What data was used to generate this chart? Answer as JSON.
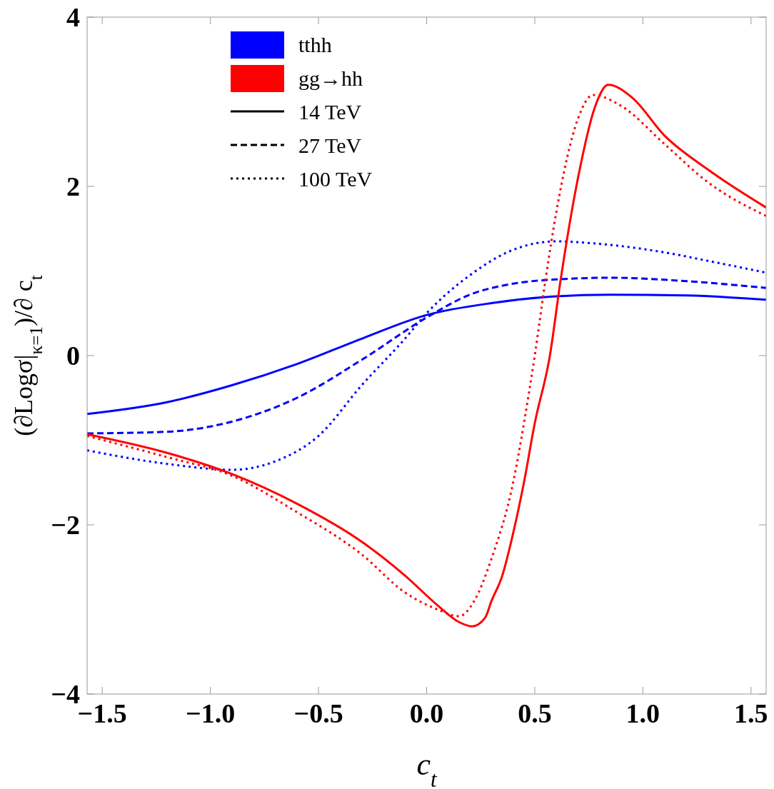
{
  "chart_data": {
    "type": "line",
    "xlabel": "c$_{t}$",
    "ylabel": "(∂Logσ|$_{κ=1}$)/∂ c$_{t}$",
    "xlim": [
      -1.57,
      1.57
    ],
    "ylim": [
      -4,
      4
    ],
    "xticks": [
      -1.5,
      {
        "value": -1,
        "label": "−1.0"
      },
      -0.5,
      {
        "value": 0,
        "label": "0.0"
      },
      0.5,
      {
        "value": 1,
        "label": "1.0"
      },
      1.5
    ],
    "yticks": [
      -4,
      -2,
      0,
      2,
      4
    ],
    "grid": false,
    "annotations": [
      "tthh",
      "gg→hh",
      "14 TeV",
      "27 TeV",
      "100 TeV"
    ],
    "series": [
      {
        "color": "#0000ff",
        "line_style": "solid",
        "x": [
          -1.57,
          -1.2,
          -0.9,
          -0.6,
          -0.3,
          0,
          0.3,
          0.6,
          0.85,
          1.2,
          1.57
        ],
        "values": [
          -0.69,
          -0.55,
          -0.35,
          -0.1,
          0.2,
          0.48,
          0.62,
          0.7,
          0.72,
          0.71,
          0.66
        ]
      },
      {
        "color": "#0000ff",
        "line_style": "dashed",
        "x": [
          -1.57,
          -1.2,
          -0.9,
          -0.6,
          -0.3,
          0,
          0.2,
          0.4,
          0.6,
          0.85,
          1.2,
          1.57
        ],
        "values": [
          -0.92,
          -0.9,
          -0.78,
          -0.5,
          -0.05,
          0.45,
          0.72,
          0.85,
          0.9,
          0.92,
          0.88,
          0.8
        ]
      },
      {
        "color": "#0000ff",
        "line_style": "dotted",
        "x": [
          -1.57,
          -1.2,
          -0.9,
          -0.7,
          -0.5,
          -0.3,
          -0.1,
          0,
          0.2,
          0.4,
          0.6,
          0.8,
          1.1,
          1.3,
          1.57
        ],
        "values": [
          -1.12,
          -1.28,
          -1.35,
          -1.25,
          -0.95,
          -0.35,
          0.2,
          0.5,
          0.95,
          1.25,
          1.35,
          1.32,
          1.22,
          1.12,
          0.98
        ]
      },
      {
        "color": "#ff0000",
        "line_style": "solid",
        "x": [
          -1.57,
          -1.2,
          -0.9,
          -0.6,
          -0.3,
          -0.1,
          0.05,
          0.15,
          0.21,
          0.27,
          0.3,
          0.35,
          0.4,
          0.45,
          0.5,
          0.57,
          0.62,
          0.7,
          0.78,
          0.84,
          0.95,
          1.1,
          1.3,
          1.57
        ],
        "values": [
          -0.93,
          -1.15,
          -1.4,
          -1.75,
          -2.2,
          -2.6,
          -2.95,
          -3.15,
          -3.2,
          -3.1,
          -2.9,
          -2.6,
          -2.1,
          -1.5,
          -0.8,
          0,
          0.9,
          2.1,
          2.95,
          3.2,
          3.05,
          2.6,
          2.2,
          1.75
        ]
      },
      {
        "color": "#ff0000",
        "line_style": "dotted",
        "x": [
          -1.57,
          -1.2,
          -0.9,
          -0.6,
          -0.3,
          -0.1,
          0.05,
          0.15,
          0.22,
          0.3,
          0.4,
          0.45,
          0.5,
          0.55,
          0.6,
          0.7,
          0.77,
          0.9,
          1.1,
          1.3,
          1.57
        ],
        "values": [
          -0.95,
          -1.2,
          -1.42,
          -1.85,
          -2.35,
          -2.8,
          -3.0,
          -3.08,
          -2.9,
          -2.4,
          -1.5,
          -0.8,
          0,
          0.9,
          1.7,
          2.8,
          3.08,
          2.95,
          2.5,
          2.05,
          1.65
        ]
      }
    ]
  }
}
